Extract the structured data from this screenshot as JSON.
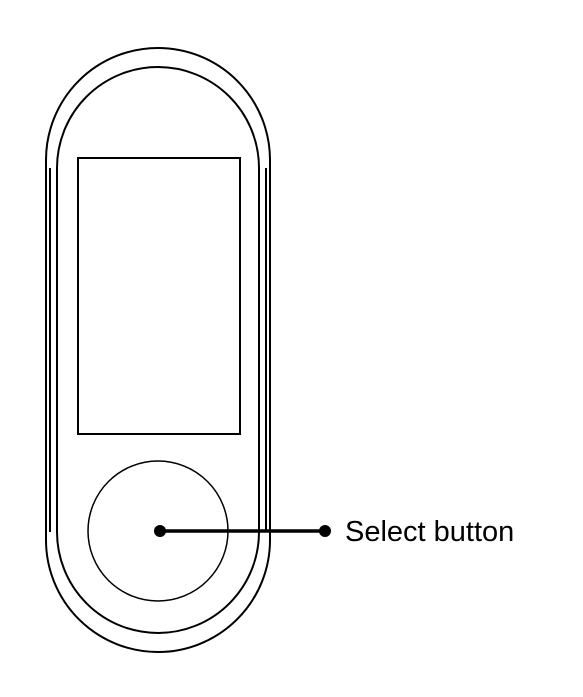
{
  "diagram": {
    "callout_label": "Select button"
  },
  "colors": {
    "stroke": "#000000",
    "background": "#ffffff"
  }
}
